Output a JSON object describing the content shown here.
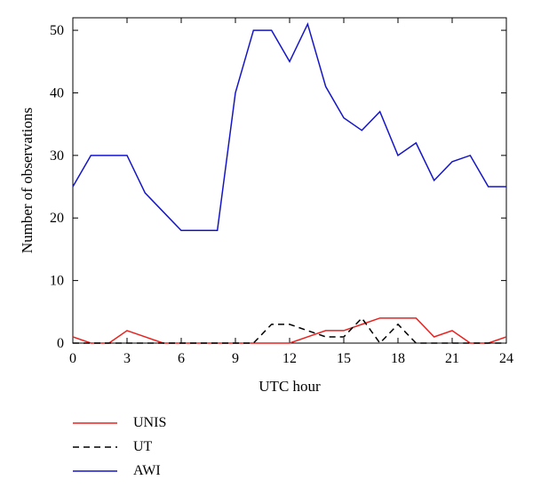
{
  "chart_data": {
    "type": "line",
    "title": "",
    "xlabel": "UTC hour",
    "ylabel": "Number of observations",
    "xlim": [
      0,
      24
    ],
    "ylim": [
      0,
      52
    ],
    "xticks": [
      0,
      3,
      6,
      9,
      12,
      15,
      18,
      21,
      24
    ],
    "yticks": [
      0,
      10,
      20,
      30,
      40,
      50
    ],
    "x": [
      0,
      1,
      2,
      3,
      4,
      5,
      6,
      7,
      8,
      9,
      10,
      11,
      12,
      13,
      14,
      15,
      16,
      17,
      18,
      19,
      20,
      21,
      22,
      23,
      24
    ],
    "series": [
      {
        "name": "UNIS",
        "color": "#e8211e",
        "dash": "solid",
        "values": [
          1,
          0,
          0,
          2,
          1,
          0,
          0,
          0,
          0,
          0,
          0,
          0,
          0,
          1,
          2,
          2,
          3,
          4,
          4,
          4,
          1,
          2,
          0,
          0,
          1
        ]
      },
      {
        "name": "UT",
        "color": "#000000",
        "dash": "dashed",
        "values": [
          0,
          0,
          0,
          0,
          0,
          0,
          0,
          0,
          0,
          0,
          0,
          3,
          3,
          2,
          1,
          1,
          4,
          0,
          3,
          0,
          0,
          0,
          0,
          0,
          0
        ]
      },
      {
        "name": "AWI",
        "color": "#1515c8",
        "dash": "solid",
        "values": [
          25,
          30,
          30,
          30,
          24,
          21,
          18,
          18,
          18,
          40,
          50,
          50,
          45,
          51,
          41,
          36,
          34,
          37,
          30,
          32,
          26,
          29,
          30,
          25,
          25
        ]
      }
    ],
    "legend_position": "bottom-left",
    "grid": false
  }
}
